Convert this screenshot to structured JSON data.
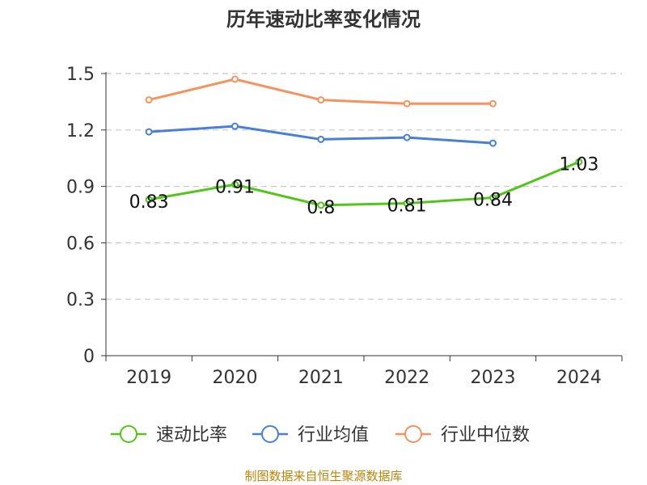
{
  "chart_data": {
    "type": "line",
    "title": "历年速动比率变化情况",
    "categories": [
      "2019",
      "2020",
      "2021",
      "2022",
      "2023",
      "2024"
    ],
    "ylim": [
      0,
      1.5
    ],
    "yticks": [
      "0",
      "0.3",
      "0.6",
      "0.9",
      "1.2",
      "1.5"
    ],
    "grid": true,
    "legend_position": "bottom",
    "series": [
      {
        "name": "速动比率",
        "color": "#52c41a",
        "values": [
          0.83,
          0.91,
          0.8,
          0.81,
          0.84,
          1.03
        ],
        "labels": [
          "0.83",
          "0.91",
          "0.8",
          "0.81",
          "0.84",
          "1.03"
        ]
      },
      {
        "name": "行业均值",
        "color": "#4a7fd6",
        "values": [
          1.19,
          1.22,
          1.15,
          1.16,
          1.13,
          null
        ]
      },
      {
        "name": "行业中位数",
        "color": "#f5925e",
        "values": [
          1.36,
          1.47,
          1.36,
          1.34,
          1.34,
          null
        ]
      }
    ],
    "source": "制图数据来自恒生聚源数据库"
  }
}
